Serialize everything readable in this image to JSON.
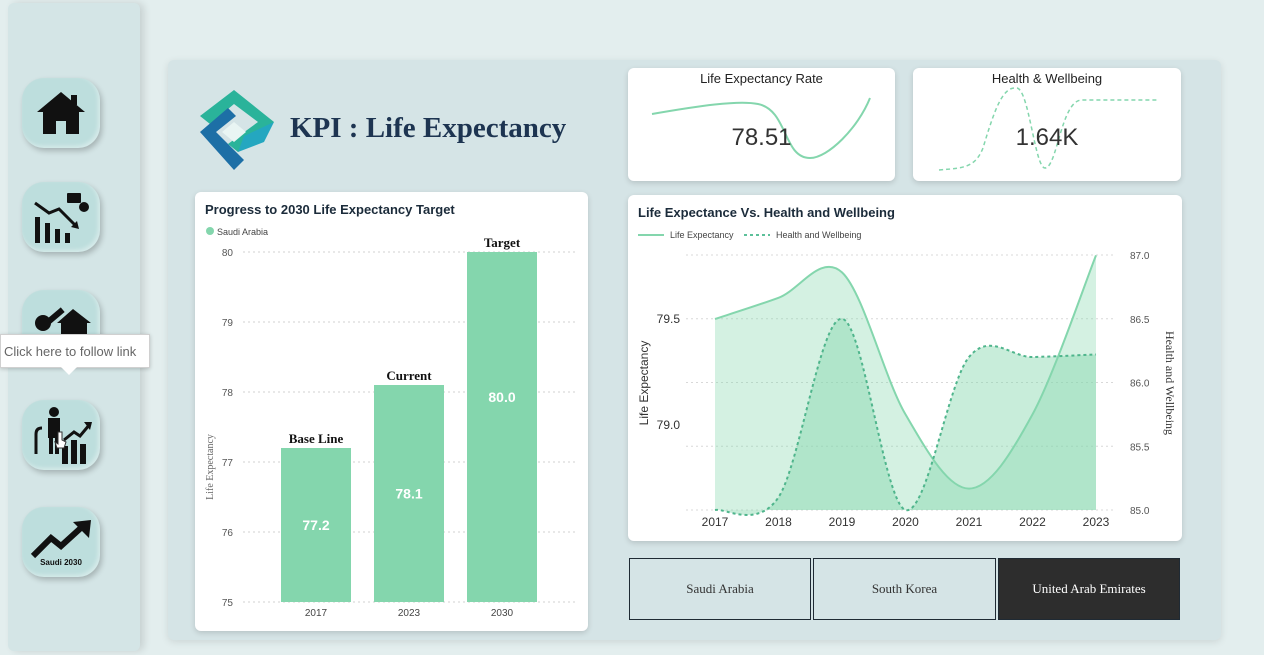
{
  "tooltip": "Click here to follow link",
  "nav": {
    "home": "Home",
    "saudi_caption": "Saudi 2030"
  },
  "title": "KPI : Life Expectancy",
  "kpi1": {
    "title": "Life Expectancy Rate",
    "value": "78.51"
  },
  "kpi2": {
    "title": "Health & Wellbeing",
    "value": "1.64K"
  },
  "bar_chart": {
    "title": "Progress to 2030 Life Expectancy Target",
    "legend": "Saudi Arabia",
    "ylabel": "Life Expectancy",
    "yticks": [
      "80",
      "79",
      "78",
      "77",
      "76",
      "75"
    ],
    "bars": [
      {
        "x": "2017",
        "value": 77.2,
        "label": "77.2",
        "top_label": "Base Line"
      },
      {
        "x": "2023",
        "value": 78.1,
        "label": "78.1",
        "top_label": "Current"
      },
      {
        "x": "2030",
        "value": 80.0,
        "label": "80.0",
        "top_label": "Target"
      }
    ]
  },
  "line_chart": {
    "title": "Life Expectance Vs. Health and Wellbeing",
    "legend1": "Life Expectancy",
    "legend2": "Health and Wellbeing",
    "ylabel_left": "Life Expectancy",
    "ylabel_right": "Health and Wellbeing",
    "left_ticks": [
      "79.5",
      "79.0"
    ],
    "right_ticks": [
      "87.0",
      "86.5",
      "86.0",
      "85.5",
      "85.0"
    ],
    "x": [
      "2017",
      "2018",
      "2019",
      "2020",
      "2021",
      "2022",
      "2023"
    ]
  },
  "countries": [
    "Saudi Arabia",
    "South Korea",
    "United Arab Emirates"
  ],
  "chart_data": [
    {
      "type": "bar",
      "title": "Progress to 2030 Life Expectancy Target",
      "categories": [
        "2017",
        "2023",
        "2030"
      ],
      "values": [
        77.2,
        78.1,
        80.0
      ],
      "ylabel": "Life Expectancy",
      "ylim": [
        75,
        80
      ],
      "series": [
        {
          "name": "Saudi Arabia",
          "values": [
            77.2,
            78.1,
            80.0
          ]
        }
      ]
    },
    {
      "type": "area",
      "title": "Life Expectance Vs. Health and Wellbeing",
      "x": [
        "2017",
        "2018",
        "2019",
        "2020",
        "2021",
        "2022",
        "2023"
      ],
      "series": [
        {
          "name": "Life Expectancy",
          "axis": "left",
          "values": [
            79.5,
            79.6,
            79.72,
            79.05,
            78.7,
            79.05,
            79.8
          ]
        },
        {
          "name": "Health and Wellbeing",
          "axis": "right",
          "values": [
            85.0,
            85.1,
            86.5,
            85.0,
            86.2,
            86.2,
            86.22
          ]
        }
      ],
      "ylabel": "Life Expectancy",
      "ylabel_right": "Health and Wellbeing",
      "ylim_right": [
        85.0,
        87.0
      ]
    }
  ],
  "colors": {
    "accent": "#84d6ad",
    "dark": "#1d3451",
    "active_btn": "#2d2d2d"
  }
}
